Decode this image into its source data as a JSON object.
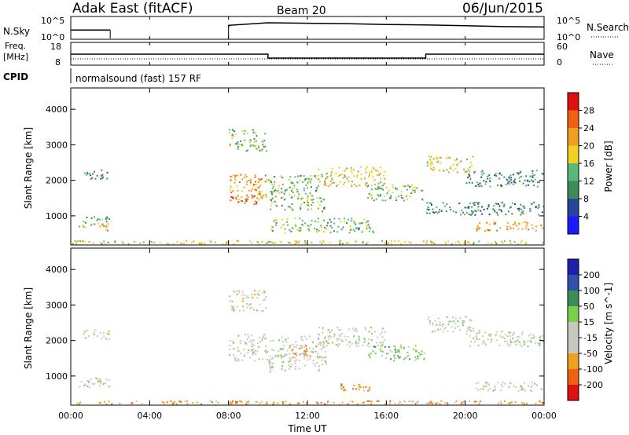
{
  "header": {
    "title": "Adak East (fitACF)",
    "beam": "Beam 20",
    "date": "06/Jun/2015"
  },
  "panels": {
    "nsky": {
      "label": "N.Sky",
      "right_label": "N.Search",
      "left_ticks": [
        "10^5",
        "10^0"
      ],
      "right_ticks": [
        "10^5",
        "10^0"
      ]
    },
    "freq": {
      "label_line1": "Freq.",
      "label_line2": "[MHz]",
      "right_label": "Nave",
      "left_ticks": [
        "18",
        "8"
      ],
      "right_ticks": [
        "60",
        "0"
      ]
    },
    "cpid": {
      "label": "CPID",
      "text": "normalsound (fast) 157 RF"
    }
  },
  "colors": {
    "power": [
      "#1a1aff",
      "#23459b",
      "#3c8c5a",
      "#58b878",
      "#f0d020",
      "#f0a020",
      "#f06010",
      "#e01010"
    ],
    "velocity": [
      "#e01010",
      "#f06010",
      "#f0a020",
      "#c8c8c0",
      "#c8c8c0",
      "#7ad04a",
      "#3c8c5a",
      "#3050b0",
      "#2020b0"
    ]
  },
  "chart_data": [
    {
      "type": "line",
      "name": "sky-noise-panel",
      "x": [
        0,
        2,
        2,
        8,
        8,
        10,
        12,
        14,
        16,
        18,
        20,
        22,
        24
      ],
      "y_log10": [
        2.0,
        2.0,
        null,
        2.6,
        3.1,
        3.7,
        3.6,
        3.5,
        3.3,
        3.2,
        3.0,
        2.8,
        2.7
      ]
    },
    {
      "type": "line",
      "name": "frequency-panel",
      "x": [
        0,
        2,
        8,
        10,
        18,
        24
      ],
      "freq_mhz": [
        14.5,
        14.5,
        14.5,
        12.0,
        14.5,
        14.5
      ],
      "nave": [
        21,
        21,
        21,
        21,
        21,
        21
      ]
    },
    {
      "type": "heatmap",
      "name": "power-panel",
      "xlabel": "",
      "ylabel": "Slant Range [km]",
      "ylim": [
        180,
        4600
      ],
      "yticks": [
        1000,
        2000,
        3000,
        4000
      ],
      "colorbar_label": "Power [dB]",
      "colorbar_ticks": [
        "4",
        "8",
        "12",
        "16",
        "20",
        "24",
        "28"
      ],
      "colorbar_range": [
        0,
        32
      ],
      "regions": [
        {
          "t0": 0.6,
          "t1": 2.0,
          "r0": 2000,
          "r1": 2320,
          "level": 2
        },
        {
          "t0": 0.4,
          "t1": 2.0,
          "r0": 650,
          "r1": 1000,
          "level": 3
        },
        {
          "t0": 1.3,
          "t1": 2.0,
          "r0": 560,
          "r1": 800,
          "level": 5
        },
        {
          "t0": 8.0,
          "t1": 10.0,
          "r0": 2800,
          "r1": 3450,
          "level": 3
        },
        {
          "t0": 8.0,
          "t1": 10.0,
          "r0": 1400,
          "r1": 2200,
          "level": 5
        },
        {
          "t0": 8.0,
          "t1": 9.6,
          "r0": 1300,
          "r1": 1600,
          "level": 6
        },
        {
          "t0": 10.0,
          "t1": 13.0,
          "r0": 1100,
          "r1": 2150,
          "level": 3
        },
        {
          "t0": 12.5,
          "t1": 16.0,
          "r0": 1800,
          "r1": 2400,
          "level": 4
        },
        {
          "t0": 15.0,
          "t1": 18.0,
          "r0": 1400,
          "r1": 1900,
          "level": 3
        },
        {
          "t0": 10.0,
          "t1": 15.5,
          "r0": 500,
          "r1": 950,
          "level": 3
        },
        {
          "t0": 18.0,
          "t1": 20.5,
          "r0": 2200,
          "r1": 2700,
          "level": 4
        },
        {
          "t0": 20.0,
          "t1": 24.0,
          "r0": 1800,
          "r1": 2300,
          "level": 2
        },
        {
          "t0": 18.0,
          "t1": 24.0,
          "r0": 1000,
          "r1": 1400,
          "level": 2
        },
        {
          "t0": 20.5,
          "t1": 24.0,
          "r0": 550,
          "r1": 850,
          "level": 5
        },
        {
          "t0": 0.0,
          "t1": 24.0,
          "r0": 180,
          "r1": 320,
          "level": 4
        }
      ]
    },
    {
      "type": "heatmap",
      "name": "velocity-panel",
      "xlabel": "Time UT",
      "ylabel": "Slant Range [km]",
      "ylim": [
        180,
        4600
      ],
      "yticks": [
        1000,
        2000,
        3000,
        4000
      ],
      "xticks": [
        "00:00",
        "04:00",
        "08:00",
        "12:00",
        "16:00",
        "20:00",
        "00:00"
      ],
      "colorbar_label": "Velocity [m s^-1]",
      "colorbar_ticks": [
        "-200",
        "-100",
        "-50",
        "-15",
        "15",
        "50",
        "100",
        "200"
      ],
      "regions": [
        {
          "t0": 0.6,
          "t1": 2.0,
          "r0": 2000,
          "r1": 2320,
          "level": 3
        },
        {
          "t0": 0.4,
          "t1": 2.0,
          "r0": 650,
          "r1": 1000,
          "level": 4
        },
        {
          "t0": 8.0,
          "t1": 10.0,
          "r0": 2800,
          "r1": 3450,
          "level": 3
        },
        {
          "t0": 8.0,
          "t1": 10.0,
          "r0": 1400,
          "r1": 2200,
          "level": 4
        },
        {
          "t0": 10.0,
          "t1": 13.0,
          "r0": 1100,
          "r1": 2150,
          "level": 4
        },
        {
          "t0": 11.0,
          "t1": 12.5,
          "r0": 1500,
          "r1": 1900,
          "level": 2
        },
        {
          "t0": 12.5,
          "t1": 16.0,
          "r0": 1800,
          "r1": 2400,
          "level": 4
        },
        {
          "t0": 13.5,
          "t1": 15.5,
          "r0": 550,
          "r1": 800,
          "level": 2
        },
        {
          "t0": 15.0,
          "t1": 18.0,
          "r0": 1400,
          "r1": 1900,
          "level": 5
        },
        {
          "t0": 18.0,
          "t1": 20.5,
          "r0": 2200,
          "r1": 2700,
          "level": 4
        },
        {
          "t0": 20.0,
          "t1": 24.0,
          "r0": 1800,
          "r1": 2300,
          "level": 4
        },
        {
          "t0": 20.5,
          "t1": 24.0,
          "r0": 550,
          "r1": 850,
          "level": 4
        },
        {
          "t0": 0.0,
          "t1": 24.0,
          "r0": 180,
          "r1": 320,
          "level": 2
        }
      ]
    }
  ]
}
